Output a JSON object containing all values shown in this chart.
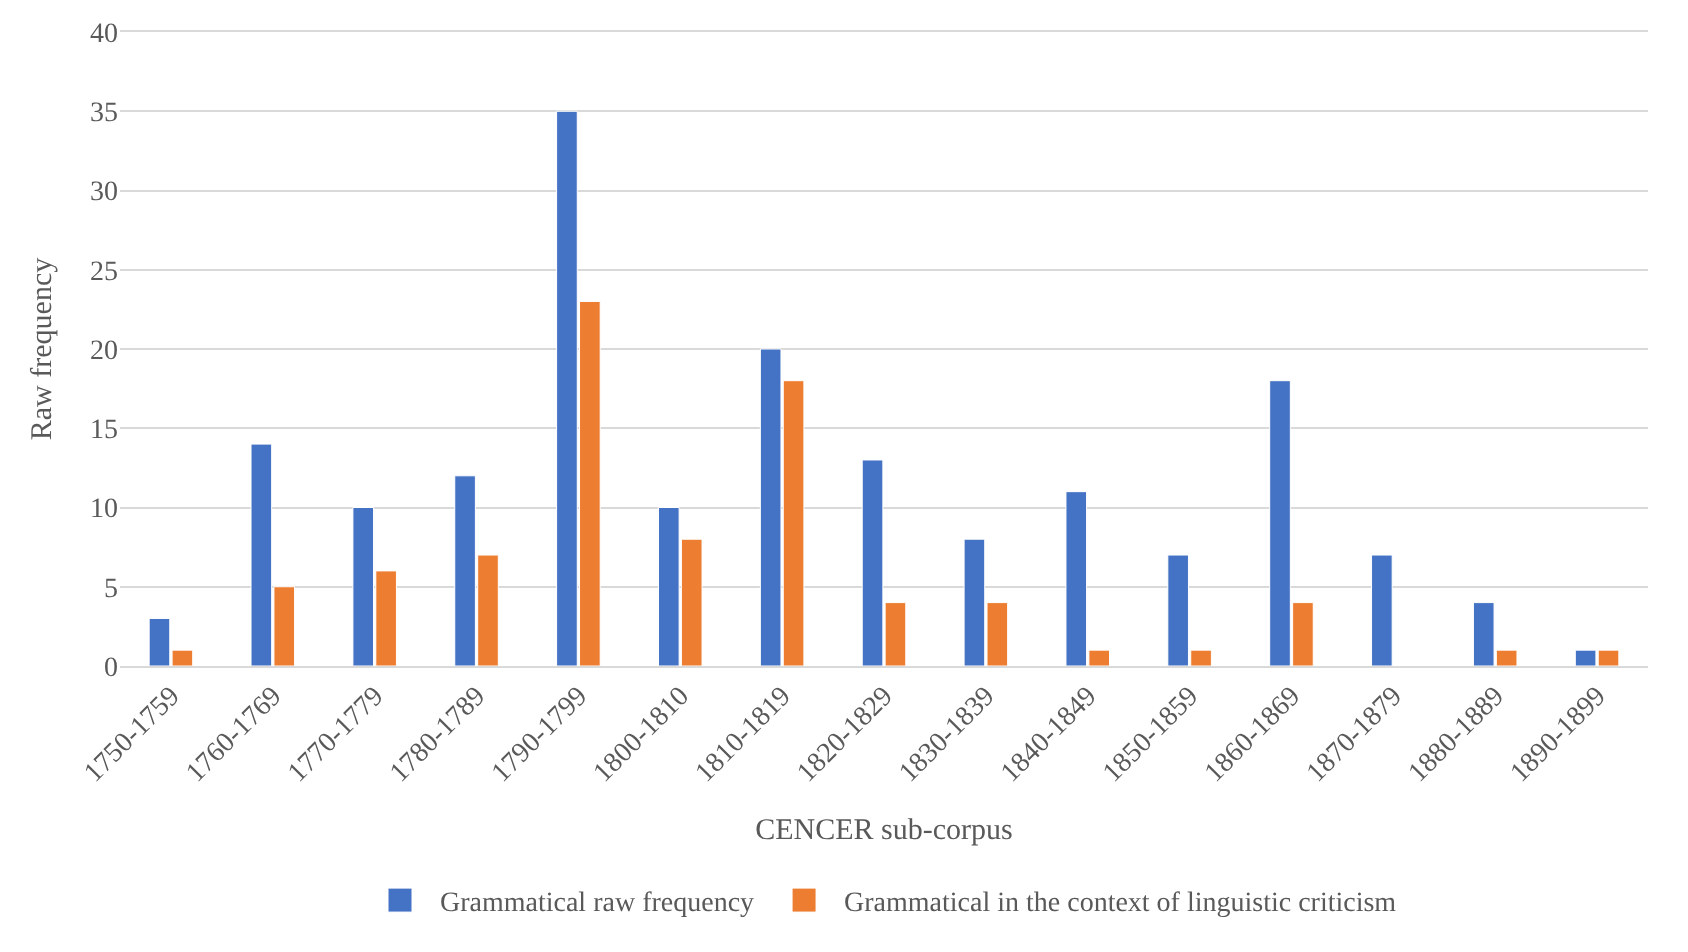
{
  "chart_data": {
    "type": "bar",
    "xlabel": "CENCER sub-corpus",
    "ylabel": "Raw frequency",
    "categories": [
      "1750-1759",
      "1760-1769",
      "1770-1779",
      "1780-1789",
      "1790-1799",
      "1800-1810",
      "1810-1819",
      "1820-1829",
      "1830-1839",
      "1840-1849",
      "1850-1859",
      "1860-1869",
      "1870-1879",
      "1880-1889",
      "1890-1899"
    ],
    "series": [
      {
        "name": "Grammatical raw frequency",
        "color": "#4472c4",
        "values": [
          3,
          14,
          10,
          12,
          35,
          10,
          20,
          13,
          8,
          11,
          7,
          18,
          7,
          4,
          1
        ]
      },
      {
        "name": "Grammatical in the context of linguistic criticism",
        "color": "#ed7d31",
        "values": [
          1,
          5,
          6,
          7,
          23,
          8,
          18,
          4,
          4,
          1,
          1,
          4,
          null,
          1,
          1
        ]
      }
    ],
    "ylim": [
      0,
      40
    ],
    "yticks": [
      0,
      5,
      10,
      15,
      20,
      25,
      30,
      35,
      40
    ],
    "grid": "y",
    "legend": "bottom"
  }
}
